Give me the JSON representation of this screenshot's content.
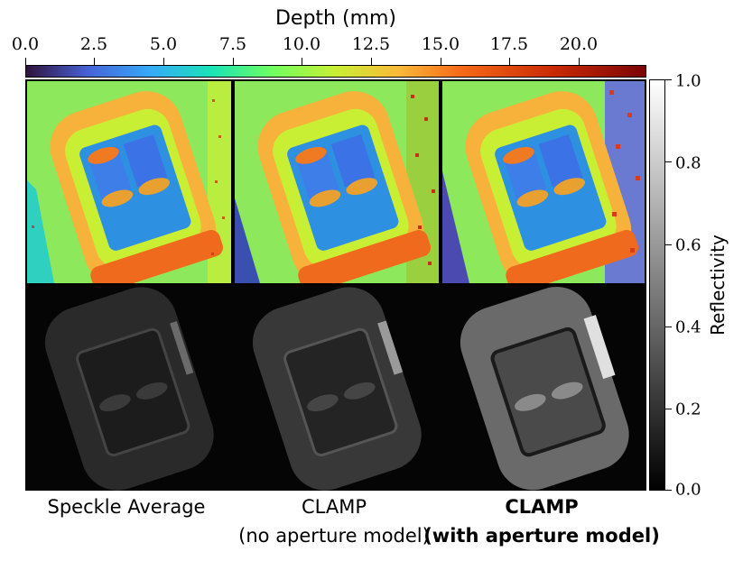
{
  "colorbar_depth": {
    "title": "Depth (mm)",
    "ticks": [
      "0.0",
      "2.5",
      "5.0",
      "7.5",
      "10.0",
      "12.5",
      "15.0",
      "17.5",
      "20.0"
    ],
    "colormap": "turbo"
  },
  "colorbar_reflectivity": {
    "label": "Reflectivity",
    "ticks": [
      "1.0",
      "0.8",
      "0.6",
      "0.4",
      "0.2",
      "0.0"
    ],
    "colormap": "gray"
  },
  "columns": [
    {
      "caption": "Speckle Average",
      "subcaption": ""
    },
    {
      "caption": "CLAMP",
      "subcaption": "(no aperture model)"
    },
    {
      "caption": "CLAMP",
      "subcaption": "(with aperture model)"
    }
  ],
  "colors": {
    "background_depth": "#8fe85a",
    "car_body": "#f4b43a",
    "seat_area": "#2f8fe0",
    "seat_cushion": "#f08a2a",
    "noise": "#c23a1a"
  }
}
